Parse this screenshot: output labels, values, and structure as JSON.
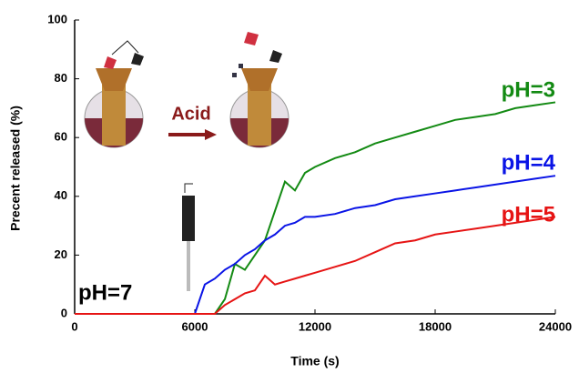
{
  "chart_data": {
    "type": "line",
    "xlabel": "Time (s)",
    "ylabel": "Precent released (%)",
    "annotations": [
      "pH=7",
      "Acid"
    ],
    "x": [
      0,
      1000,
      2000,
      3000,
      4000,
      5000,
      6000,
      6500,
      7000,
      7500,
      8000,
      8500,
      9000,
      9500,
      10000,
      10500,
      11000,
      11500,
      12000,
      13000,
      14000,
      15000,
      16000,
      17000,
      18000,
      19000,
      20000,
      21000,
      22000,
      23000,
      24000
    ],
    "series": [
      {
        "name": "pH=3",
        "color": "#138a13",
        "values": [
          0,
          0,
          0,
          0,
          0,
          0,
          0,
          0,
          0,
          5,
          17,
          15,
          20,
          25,
          35,
          45,
          42,
          48,
          50,
          53,
          55,
          58,
          60,
          62,
          64,
          66,
          67,
          68,
          70,
          71,
          72
        ]
      },
      {
        "name": "pH=4",
        "color": "#0a14e6",
        "values": [
          0,
          0,
          0,
          0,
          0,
          0,
          0,
          10,
          12,
          15,
          17,
          20,
          22,
          25,
          27,
          30,
          31,
          33,
          33,
          34,
          36,
          37,
          39,
          40,
          41,
          42,
          43,
          44,
          45,
          46,
          47
        ]
      },
      {
        "name": "pH=5",
        "color": "#e61414",
        "values": [
          0,
          0,
          0,
          0,
          0,
          0,
          0,
          0,
          0,
          3,
          5,
          7,
          8,
          13,
          10,
          11,
          12,
          13,
          14,
          16,
          18,
          21,
          24,
          25,
          27,
          28,
          29,
          30,
          31,
          32,
          33
        ]
      }
    ],
    "xlim": [
      0,
      24000
    ],
    "xticks": [
      0,
      6000,
      12000,
      18000,
      24000
    ],
    "ylim": [
      0,
      100
    ],
    "yticks": [
      0,
      20,
      40,
      60,
      80,
      100
    ]
  }
}
